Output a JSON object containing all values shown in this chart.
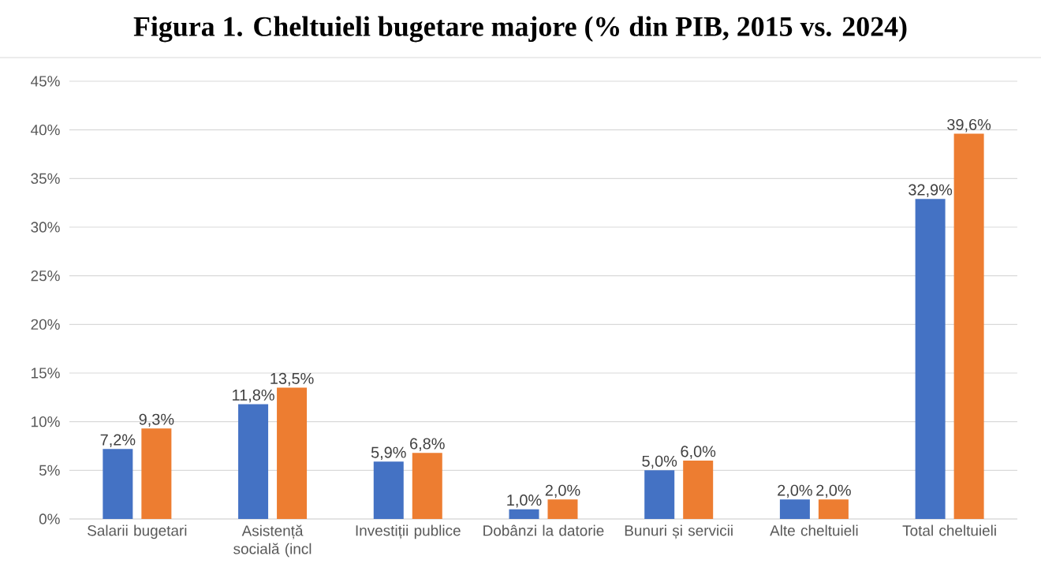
{
  "chart_data": {
    "type": "bar",
    "title": "Figura 1. Cheltuieli bugetare majore (% din PIB, 2015 vs. 2024)",
    "categories": [
      "Salarii bugetari",
      "Asistență socială (incl",
      "Investiții publice",
      "Dobânzi la datorie",
      "Bunuri și servicii",
      "Alte cheltuieli",
      "Total cheltuieli"
    ],
    "series": [
      {
        "color": "#4472c4",
        "values": [
          7.2,
          11.8,
          5.9,
          1.0,
          5.0,
          2.0,
          32.9
        ],
        "value_labels": [
          "7,2%",
          "11,8%",
          "5,9%",
          "1,0%",
          "5,0%",
          "2,0%",
          "32,9%"
        ]
      },
      {
        "color": "#ed7d31",
        "values": [
          9.3,
          13.5,
          6.8,
          2.0,
          6.0,
          2.0,
          39.6
        ],
        "value_labels": [
          "9,3%",
          "13,5%",
          "6,8%",
          "2,0%",
          "6,0%",
          "2,0%",
          "39,6%"
        ]
      }
    ],
    "ylim": [
      0,
      45
    ],
    "yticks": [
      {
        "value": 0,
        "label": "0%"
      },
      {
        "value": 5,
        "label": "5%"
      },
      {
        "value": 10,
        "label": "10%"
      },
      {
        "value": 15,
        "label": "15%"
      },
      {
        "value": 20,
        "label": "20%"
      },
      {
        "value": 25,
        "label": "25%"
      },
      {
        "value": 30,
        "label": "30%"
      },
      {
        "value": 35,
        "label": "35%"
      },
      {
        "value": 40,
        "label": "40%"
      },
      {
        "value": 45,
        "label": "45%"
      }
    ],
    "grid": "y"
  }
}
